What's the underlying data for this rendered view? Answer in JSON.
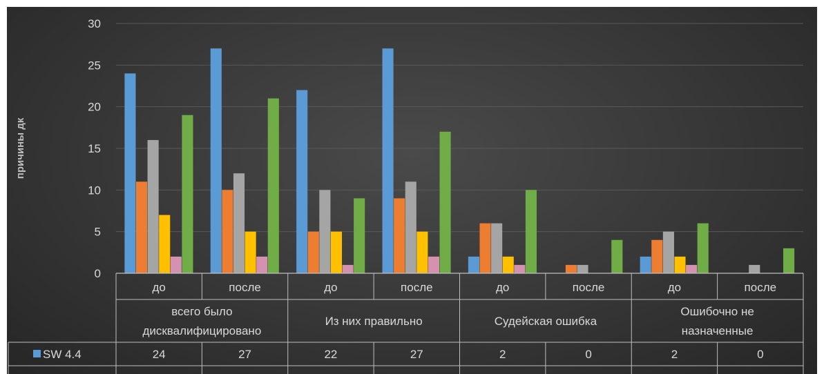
{
  "chart_data": {
    "type": "bar",
    "ylabel": "причины дк",
    "ylim": [
      0,
      30
    ],
    "yticks": [
      0,
      5,
      10,
      15,
      20,
      25,
      30
    ],
    "grid": true,
    "legend": "data-table",
    "groups": [
      {
        "label": "всего было дисквалифицировано",
        "lines": [
          "всего было",
          "дисквалифицировано"
        ]
      },
      {
        "label": "Из них правильно",
        "lines": [
          "Из них правильно"
        ]
      },
      {
        "label": "Судейская ошибка",
        "lines": [
          "Судейская ошибка"
        ]
      },
      {
        "label": "Ошибочно не назначенные",
        "lines": [
          "Ошибочно не",
          "назначенные"
        ]
      }
    ],
    "categories": [
      "до",
      "после",
      "до",
      "после",
      "до",
      "после",
      "до",
      "после"
    ],
    "series": [
      {
        "name": "SW 4.4",
        "color": "#5b9bd5",
        "values": [
          24,
          27,
          22,
          27,
          2,
          0,
          2,
          0
        ]
      },
      {
        "color": "#ed7d31",
        "values": [
          11,
          10,
          5,
          9,
          6,
          1,
          4,
          0
        ]
      },
      {
        "color": "#a5a5a5",
        "values": [
          16,
          12,
          10,
          11,
          6,
          1,
          5,
          1
        ]
      },
      {
        "color": "#ffc000",
        "values": [
          7,
          5,
          5,
          5,
          2,
          0,
          2,
          0
        ]
      },
      {
        "color": "#d492b0",
        "values": [
          2,
          2,
          1,
          2,
          1,
          0,
          1,
          0
        ]
      },
      {
        "color": "#70ad47",
        "values": [
          19,
          21,
          9,
          17,
          10,
          4,
          6,
          3
        ]
      }
    ]
  }
}
